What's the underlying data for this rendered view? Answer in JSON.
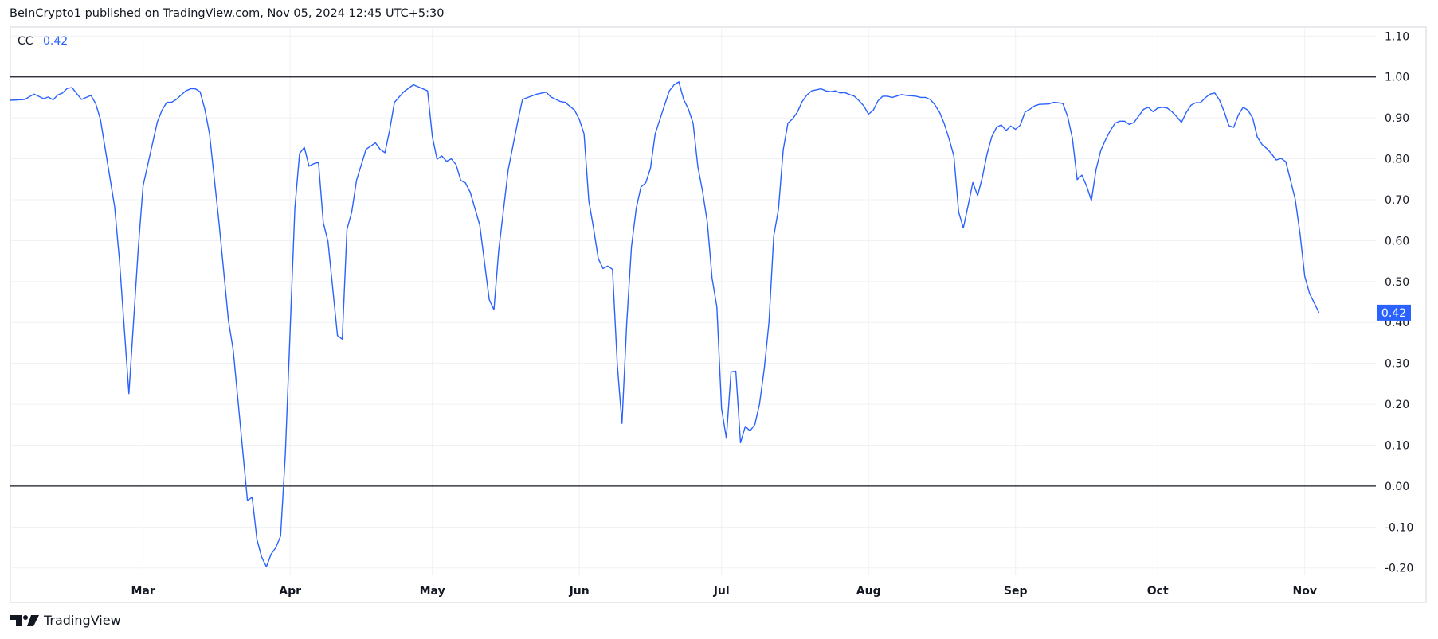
{
  "header": {
    "text": "BeInCrypto1 published on TradingView.com, Nov 05, 2024 12:45 UTC+5:30"
  },
  "legend": {
    "indicator": "CC",
    "value": "0.42"
  },
  "footer": {
    "logo_text": "TradingView",
    "logo_icon": "tradingview-logo-icon"
  },
  "colors": {
    "line": "#2962ff",
    "reference_lines": "#131722",
    "grid": "#f0f1f4",
    "price_badge": "#2962ff"
  },
  "chart_data": {
    "type": "line",
    "title": "",
    "xlabel": "",
    "ylabel": "",
    "grid": true,
    "xlim": [
      "2024-02-02",
      "2024-11-16"
    ],
    "ylim": [
      -0.218,
      1.122
    ],
    "x_ticks": [
      {
        "label": "Mar",
        "date": "2024-03-01"
      },
      {
        "label": "Apr",
        "date": "2024-04-01"
      },
      {
        "label": "May",
        "date": "2024-05-01"
      },
      {
        "label": "Jun",
        "date": "2024-06-01"
      },
      {
        "label": "Jul",
        "date": "2024-07-01"
      },
      {
        "label": "Aug",
        "date": "2024-08-01"
      },
      {
        "label": "Sep",
        "date": "2024-09-01"
      },
      {
        "label": "Oct",
        "date": "2024-10-01"
      },
      {
        "label": "Nov",
        "date": "2024-11-01"
      }
    ],
    "y_ticks": [
      "1.10",
      "1.00",
      "0.90",
      "0.80",
      "0.70",
      "0.60",
      "0.50",
      "0.40",
      "0.30",
      "0.20",
      "0.10",
      "0.00",
      "-0.10",
      "-0.20"
    ],
    "reference_lines": [
      1.0,
      0.0
    ],
    "last_value_label": "0.42",
    "series": [
      {
        "points": [
          [
            "2024-02-02",
            0.943
          ],
          [
            "2024-02-05",
            0.945
          ],
          [
            "2024-02-07",
            0.958
          ],
          [
            "2024-02-09",
            0.947
          ],
          [
            "2024-02-10",
            0.951
          ],
          [
            "2024-02-11",
            0.944
          ],
          [
            "2024-02-12",
            0.956
          ],
          [
            "2024-02-13",
            0.961
          ],
          [
            "2024-02-14",
            0.972
          ],
          [
            "2024-02-15",
            0.974
          ],
          [
            "2024-02-17",
            0.945
          ],
          [
            "2024-02-19",
            0.955
          ],
          [
            "2024-02-20",
            0.935
          ],
          [
            "2024-02-21",
            0.896
          ],
          [
            "2024-02-24",
            0.683
          ],
          [
            "2024-02-25",
            0.553
          ],
          [
            "2024-02-27",
            0.226
          ],
          [
            "2024-02-29",
            0.585
          ],
          [
            "2024-03-01",
            0.734
          ],
          [
            "2024-03-03",
            0.838
          ],
          [
            "2024-03-04",
            0.89
          ],
          [
            "2024-03-05",
            0.919
          ],
          [
            "2024-03-06",
            0.938
          ],
          [
            "2024-03-07",
            0.938
          ],
          [
            "2024-03-08",
            0.945
          ],
          [
            "2024-03-09",
            0.956
          ],
          [
            "2024-03-10",
            0.966
          ],
          [
            "2024-03-11",
            0.971
          ],
          [
            "2024-03-12",
            0.971
          ],
          [
            "2024-03-13",
            0.964
          ],
          [
            "2024-03-14",
            0.922
          ],
          [
            "2024-03-15",
            0.861
          ],
          [
            "2024-03-17",
            0.644
          ],
          [
            "2024-03-19",
            0.404
          ],
          [
            "2024-03-20",
            0.333
          ],
          [
            "2024-03-23",
            -0.035
          ],
          [
            "2024-03-24",
            -0.027
          ],
          [
            "2024-03-25",
            -0.13
          ],
          [
            "2024-03-26",
            -0.173
          ],
          [
            "2024-03-27",
            -0.197
          ],
          [
            "2024-03-28",
            -0.166
          ],
          [
            "2024-03-29",
            -0.15
          ],
          [
            "2024-03-30",
            -0.122
          ],
          [
            "2024-03-31",
            0.08
          ],
          [
            "2024-04-02",
            0.679
          ],
          [
            "2024-04-03",
            0.813
          ],
          [
            "2024-04-04",
            0.828
          ],
          [
            "2024-04-05",
            0.782
          ],
          [
            "2024-04-06",
            0.788
          ],
          [
            "2024-04-07",
            0.791
          ],
          [
            "2024-04-08",
            0.644
          ],
          [
            "2024-04-09",
            0.598
          ],
          [
            "2024-04-11",
            0.368
          ],
          [
            "2024-04-12",
            0.359
          ],
          [
            "2024-04-13",
            0.627
          ],
          [
            "2024-04-14",
            0.67
          ],
          [
            "2024-04-15",
            0.747
          ],
          [
            "2024-04-17",
            0.823
          ],
          [
            "2024-04-19",
            0.839
          ],
          [
            "2024-04-20",
            0.823
          ],
          [
            "2024-04-21",
            0.815
          ],
          [
            "2024-04-22",
            0.87
          ],
          [
            "2024-04-23",
            0.938
          ],
          [
            "2024-04-25",
            0.964
          ],
          [
            "2024-04-27",
            0.981
          ],
          [
            "2024-04-30",
            0.966
          ],
          [
            "2024-05-01",
            0.854
          ],
          [
            "2024-05-02",
            0.799
          ],
          [
            "2024-05-03",
            0.807
          ],
          [
            "2024-05-04",
            0.794
          ],
          [
            "2024-05-05",
            0.8
          ],
          [
            "2024-05-06",
            0.786
          ],
          [
            "2024-05-07",
            0.747
          ],
          [
            "2024-05-08",
            0.741
          ],
          [
            "2024-05-09",
            0.718
          ],
          [
            "2024-05-11",
            0.638
          ],
          [
            "2024-05-13",
            0.456
          ],
          [
            "2024-05-14",
            0.431
          ],
          [
            "2024-05-15",
            0.576
          ],
          [
            "2024-05-17",
            0.773
          ],
          [
            "2024-05-19",
            0.89
          ],
          [
            "2024-05-20",
            0.945
          ],
          [
            "2024-05-23",
            0.958
          ],
          [
            "2024-05-25",
            0.963
          ],
          [
            "2024-05-26",
            0.951
          ],
          [
            "2024-05-28",
            0.94
          ],
          [
            "2024-05-29",
            0.938
          ],
          [
            "2024-05-31",
            0.919
          ],
          [
            "2024-06-01",
            0.896
          ],
          [
            "2024-06-02",
            0.861
          ],
          [
            "2024-06-03",
            0.697
          ],
          [
            "2024-06-04",
            0.631
          ],
          [
            "2024-06-05",
            0.556
          ],
          [
            "2024-06-06",
            0.532
          ],
          [
            "2024-06-07",
            0.538
          ],
          [
            "2024-06-08",
            0.53
          ],
          [
            "2024-06-09",
            0.298
          ],
          [
            "2024-06-10",
            0.153
          ],
          [
            "2024-06-11",
            0.4
          ],
          [
            "2024-06-12",
            0.585
          ],
          [
            "2024-06-13",
            0.679
          ],
          [
            "2024-06-14",
            0.731
          ],
          [
            "2024-06-15",
            0.741
          ],
          [
            "2024-06-16",
            0.776
          ],
          [
            "2024-06-17",
            0.861
          ],
          [
            "2024-06-19",
            0.932
          ],
          [
            "2024-06-20",
            0.966
          ],
          [
            "2024-06-21",
            0.981
          ],
          [
            "2024-06-22",
            0.988
          ],
          [
            "2024-06-23",
            0.945
          ],
          [
            "2024-06-24",
            0.922
          ],
          [
            "2024-06-25",
            0.887
          ],
          [
            "2024-06-26",
            0.78
          ],
          [
            "2024-06-27",
            0.72
          ],
          [
            "2024-06-28",
            0.644
          ],
          [
            "2024-06-29",
            0.508
          ],
          [
            "2024-06-30",
            0.438
          ],
          [
            "2024-07-01",
            0.19
          ],
          [
            "2024-07-02",
            0.117
          ],
          [
            "2024-07-03",
            0.279
          ],
          [
            "2024-07-04",
            0.281
          ],
          [
            "2024-07-05",
            0.106
          ],
          [
            "2024-07-06",
            0.146
          ],
          [
            "2024-07-07",
            0.135
          ],
          [
            "2024-07-08",
            0.15
          ],
          [
            "2024-07-09",
            0.2
          ],
          [
            "2024-07-10",
            0.287
          ],
          [
            "2024-07-11",
            0.4
          ],
          [
            "2024-07-12",
            0.611
          ],
          [
            "2024-07-13",
            0.676
          ],
          [
            "2024-07-14",
            0.822
          ],
          [
            "2024-07-15",
            0.887
          ],
          [
            "2024-07-16",
            0.898
          ],
          [
            "2024-07-17",
            0.914
          ],
          [
            "2024-07-18",
            0.94
          ],
          [
            "2024-07-19",
            0.956
          ],
          [
            "2024-07-20",
            0.966
          ],
          [
            "2024-07-22",
            0.971
          ],
          [
            "2024-07-23",
            0.966
          ],
          [
            "2024-07-24",
            0.964
          ],
          [
            "2024-07-25",
            0.966
          ],
          [
            "2024-07-26",
            0.961
          ],
          [
            "2024-07-27",
            0.962
          ],
          [
            "2024-07-28",
            0.957
          ],
          [
            "2024-07-29",
            0.953
          ],
          [
            "2024-07-30",
            0.942
          ],
          [
            "2024-07-31",
            0.929
          ],
          [
            "2024-08-01",
            0.909
          ],
          [
            "2024-08-02",
            0.919
          ],
          [
            "2024-08-03",
            0.942
          ],
          [
            "2024-08-04",
            0.953
          ],
          [
            "2024-08-05",
            0.953
          ],
          [
            "2024-08-06",
            0.95
          ],
          [
            "2024-08-08",
            0.957
          ],
          [
            "2024-08-09",
            0.955
          ],
          [
            "2024-08-11",
            0.953
          ],
          [
            "2024-08-12",
            0.95
          ],
          [
            "2024-08-13",
            0.95
          ],
          [
            "2024-08-14",
            0.945
          ],
          [
            "2024-08-15",
            0.932
          ],
          [
            "2024-08-16",
            0.913
          ],
          [
            "2024-08-17",
            0.885
          ],
          [
            "2024-08-18",
            0.848
          ],
          [
            "2024-08-19",
            0.807
          ],
          [
            "2024-08-20",
            0.67
          ],
          [
            "2024-08-21",
            0.631
          ],
          [
            "2024-08-22",
            0.686
          ],
          [
            "2024-08-23",
            0.742
          ],
          [
            "2024-08-24",
            0.71
          ],
          [
            "2024-08-25",
            0.754
          ],
          [
            "2024-08-26",
            0.812
          ],
          [
            "2024-08-27",
            0.854
          ],
          [
            "2024-08-28",
            0.877
          ],
          [
            "2024-08-29",
            0.883
          ],
          [
            "2024-08-30",
            0.869
          ],
          [
            "2024-08-31",
            0.88
          ],
          [
            "2024-09-01",
            0.872
          ],
          [
            "2024-09-02",
            0.882
          ],
          [
            "2024-09-03",
            0.914
          ],
          [
            "2024-09-04",
            0.921
          ],
          [
            "2024-09-05",
            0.929
          ],
          [
            "2024-09-06",
            0.933
          ],
          [
            "2024-09-08",
            0.934
          ],
          [
            "2024-09-09",
            0.938
          ],
          [
            "2024-09-10",
            0.937
          ],
          [
            "2024-09-11",
            0.935
          ],
          [
            "2024-09-12",
            0.903
          ],
          [
            "2024-09-13",
            0.85
          ],
          [
            "2024-09-14",
            0.749
          ],
          [
            "2024-09-15",
            0.76
          ],
          [
            "2024-09-16",
            0.733
          ],
          [
            "2024-09-17",
            0.698
          ],
          [
            "2024-09-18",
            0.775
          ],
          [
            "2024-09-19",
            0.821
          ],
          [
            "2024-09-20",
            0.847
          ],
          [
            "2024-09-21",
            0.869
          ],
          [
            "2024-09-22",
            0.887
          ],
          [
            "2024-09-23",
            0.892
          ],
          [
            "2024-09-24",
            0.892
          ],
          [
            "2024-09-25",
            0.884
          ],
          [
            "2024-09-26",
            0.889
          ],
          [
            "2024-09-27",
            0.905
          ],
          [
            "2024-09-28",
            0.921
          ],
          [
            "2024-09-29",
            0.926
          ],
          [
            "2024-09-30",
            0.915
          ],
          [
            "2024-10-01",
            0.924
          ],
          [
            "2024-10-02",
            0.926
          ],
          [
            "2024-10-03",
            0.924
          ],
          [
            "2024-10-04",
            0.915
          ],
          [
            "2024-10-05",
            0.903
          ],
          [
            "2024-10-06",
            0.889
          ],
          [
            "2024-10-07",
            0.913
          ],
          [
            "2024-10-08",
            0.931
          ],
          [
            "2024-10-09",
            0.937
          ],
          [
            "2024-10-10",
            0.937
          ],
          [
            "2024-10-11",
            0.949
          ],
          [
            "2024-10-12",
            0.958
          ],
          [
            "2024-10-13",
            0.961
          ],
          [
            "2024-10-14",
            0.944
          ],
          [
            "2024-10-15",
            0.915
          ],
          [
            "2024-10-16",
            0.881
          ],
          [
            "2024-10-17",
            0.877
          ],
          [
            "2024-10-18",
            0.907
          ],
          [
            "2024-10-19",
            0.926
          ],
          [
            "2024-10-20",
            0.919
          ],
          [
            "2024-10-21",
            0.9
          ],
          [
            "2024-10-22",
            0.853
          ],
          [
            "2024-10-23",
            0.835
          ],
          [
            "2024-10-24",
            0.825
          ],
          [
            "2024-10-25",
            0.812
          ],
          [
            "2024-10-26",
            0.797
          ],
          [
            "2024-10-27",
            0.801
          ],
          [
            "2024-10-28",
            0.793
          ],
          [
            "2024-10-29",
            0.747
          ],
          [
            "2024-10-30",
            0.701
          ],
          [
            "2024-10-31",
            0.617
          ],
          [
            "2024-11-01",
            0.513
          ],
          [
            "2024-11-02",
            0.471
          ],
          [
            "2024-11-03",
            0.448
          ],
          [
            "2024-11-04",
            0.424
          ]
        ]
      }
    ]
  }
}
